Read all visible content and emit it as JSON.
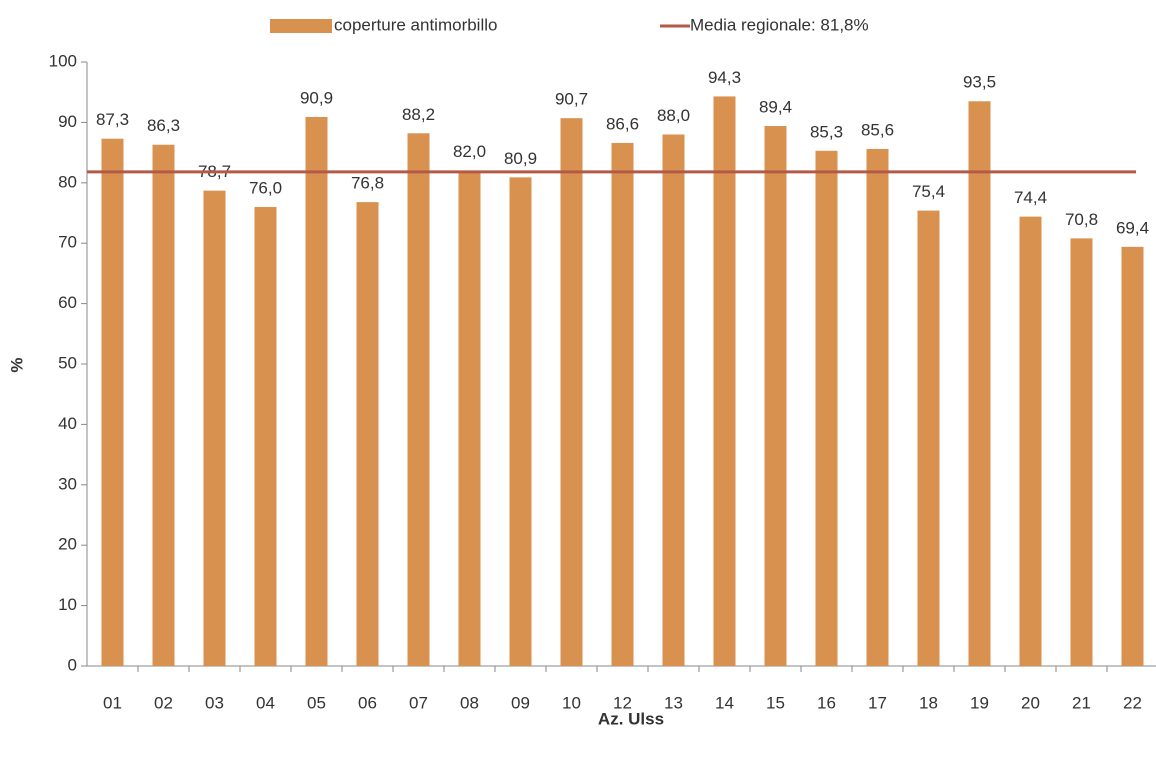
{
  "chart_data": {
    "type": "bar",
    "x_label": "Az.  Ulss",
    "y_label": "%",
    "categories": [
      "01",
      "02",
      "03",
      "04",
      "05",
      "06",
      "07",
      "08",
      "09",
      "10",
      "12",
      "13",
      "14",
      "15",
      "16",
      "17",
      "18",
      "19",
      "20",
      "21",
      "22"
    ],
    "series": [
      {
        "name": "coperture antimorbillo",
        "color": "#d9914f",
        "values": [
          87.3,
          86.3,
          78.7,
          76.0,
          90.9,
          76.8,
          88.2,
          82.0,
          80.9,
          90.7,
          86.6,
          88.0,
          94.3,
          89.4,
          85.3,
          85.6,
          75.4,
          93.5,
          74.4,
          70.8,
          69.4
        ],
        "value_labels": [
          "87,3",
          "86,3",
          "78,7",
          "76,0",
          "90,9",
          "76,8",
          "88,2",
          "82,0",
          "80,9",
          "90,7",
          "86,6",
          "88,0",
          "94,3",
          "89,4",
          "85,3",
          "85,6",
          "75,4",
          "93,5",
          "74,4",
          "70,8",
          "69,4"
        ]
      }
    ],
    "reference_line": {
      "name": "Media regionale: 81,8%",
      "value": 81.8,
      "color": "#b35a47"
    },
    "ylim": [
      0,
      100
    ],
    "yticks": [
      0,
      10,
      20,
      30,
      40,
      50,
      60,
      70,
      80,
      90,
      100
    ],
    "grid": false,
    "legend": "top"
  }
}
